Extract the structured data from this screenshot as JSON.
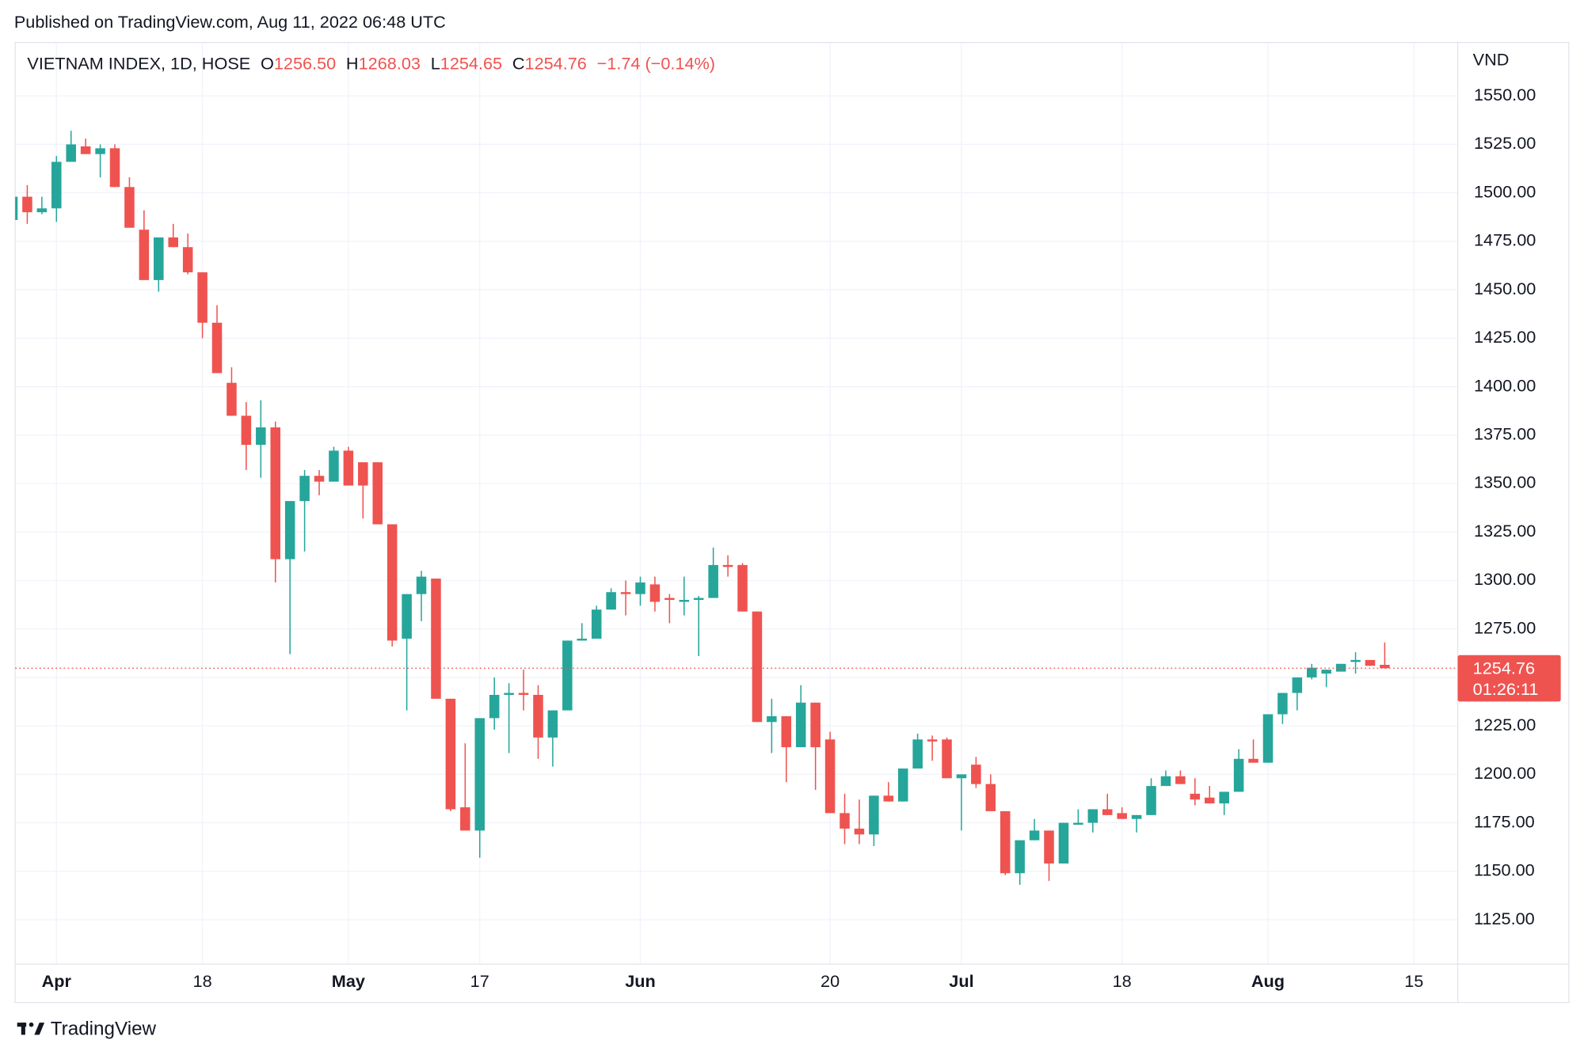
{
  "published": "Published on TradingView.com, Aug 11, 2022 06:48 UTC",
  "brand": "TradingView",
  "chart_data": {
    "type": "candlestick",
    "title": "VIETNAM INDEX, 1D, HOSE",
    "ohlc_header": {
      "o_key": "O",
      "o": "1256.50",
      "h_key": "H",
      "h": "1268.03",
      "l_key": "L",
      "l": "1254.65",
      "c_key": "C",
      "c": "1254.76",
      "change": "−1.74 (−0.14%)"
    },
    "y_axis_label": "VND",
    "countdown": "01:26:11",
    "up_color": "#26a69a",
    "down_color": "#ef5350",
    "grid": true,
    "x": [
      0,
      1,
      2,
      3,
      4,
      5,
      6,
      7,
      8,
      9,
      10,
      11,
      12,
      13,
      14,
      15,
      16,
      17,
      18,
      19,
      20,
      21,
      22,
      23,
      24,
      25,
      26,
      27,
      28,
      29,
      30,
      31,
      32,
      33,
      34,
      35,
      36,
      37,
      38,
      39,
      40,
      41,
      42,
      43,
      44,
      45,
      46,
      47,
      48,
      49,
      50,
      51,
      52,
      53,
      54,
      55,
      56,
      57,
      58,
      59,
      60,
      61,
      62,
      63,
      64,
      65,
      66,
      67,
      68,
      69,
      70,
      71,
      72,
      73,
      74,
      75,
      76,
      77,
      78,
      79,
      80,
      81,
      82,
      83,
      84,
      85,
      86,
      87,
      88,
      89,
      90,
      91,
      92,
      93,
      94
    ],
    "open": [
      1486,
      1498,
      1490,
      1492,
      1516,
      1524,
      1520,
      1523,
      1503,
      1481,
      1455,
      1477,
      1472,
      1459,
      1433,
      1402,
      1385,
      1370,
      1379,
      1311,
      1341,
      1354,
      1351,
      1367,
      1361,
      1361,
      1329,
      1270,
      1293,
      1301,
      1239,
      1183,
      1171,
      1229,
      1241,
      1242,
      1241,
      1219,
      1233,
      1269,
      1270,
      1285,
      1294,
      1293,
      1298,
      1291,
      1289,
      1290,
      1291,
      1308,
      1308,
      1284,
      1227,
      1230,
      1214,
      1237,
      1218,
      1180,
      1172,
      1169,
      1189,
      1186,
      1203,
      1218,
      1218,
      1198,
      1205,
      1195,
      1181,
      1149,
      1166,
      1171,
      1154,
      1174,
      1175,
      1182,
      1180,
      1177,
      1179,
      1194,
      1199,
      1190,
      1188,
      1185,
      1191,
      1208,
      1206,
      1231,
      1242,
      1250,
      1252,
      1253,
      1258,
      1259,
      1256.5
    ],
    "high": [
      1504,
      1504,
      1498,
      1519,
      1532,
      1528,
      1525,
      1525,
      1508,
      1491,
      1477,
      1484,
      1479,
      1459,
      1442,
      1410,
      1392,
      1393,
      1382,
      1341,
      1357,
      1357,
      1369,
      1369,
      1361,
      1361,
      1329,
      1293,
      1305,
      1301,
      1239,
      1216,
      1229,
      1250,
      1247,
      1254,
      1246,
      1233,
      1269,
      1278,
      1287,
      1296,
      1300,
      1302,
      1302,
      1293,
      1302,
      1292,
      1317,
      1313,
      1309,
      1284,
      1239,
      1230,
      1246,
      1237,
      1222,
      1190,
      1187,
      1189,
      1196,
      1203,
      1221,
      1220,
      1219,
      1200,
      1209,
      1200,
      1181,
      1166,
      1177,
      1171,
      1175,
      1182,
      1182,
      1190,
      1183,
      1179,
      1198,
      1202,
      1202,
      1198,
      1194,
      1191,
      1213,
      1218,
      1231,
      1242,
      1250,
      1257,
      1254,
      1257,
      1263,
      1259,
      1268.03
    ],
    "low": [
      1483,
      1484,
      1489,
      1485,
      1516,
      1520,
      1508,
      1503,
      1482,
      1455,
      1449,
      1472,
      1458,
      1425,
      1407,
      1385,
      1357,
      1353,
      1299,
      1262,
      1315,
      1344,
      1351,
      1349,
      1332,
      1329,
      1266,
      1233,
      1279,
      1239,
      1181,
      1171,
      1157,
      1223,
      1211,
      1233,
      1208,
      1204,
      1233,
      1269,
      1270,
      1285,
      1282,
      1287,
      1284,
      1278,
      1282,
      1261,
      1291,
      1302,
      1284,
      1227,
      1211,
      1196,
      1214,
      1192,
      1180,
      1164,
      1164,
      1163,
      1186,
      1186,
      1203,
      1207,
      1198,
      1171,
      1193,
      1181,
      1148,
      1143,
      1166,
      1145,
      1154,
      1174,
      1170,
      1179,
      1177,
      1170,
      1179,
      1194,
      1195,
      1184,
      1185,
      1179,
      1191,
      1206,
      1206,
      1226,
      1233,
      1249,
      1245,
      1253,
      1252,
      1256,
      1254.65
    ],
    "close": [
      1498,
      1490,
      1492,
      1516,
      1525,
      1520,
      1523,
      1503,
      1482,
      1455,
      1477,
      1472,
      1459,
      1433,
      1407,
      1385,
      1370,
      1379,
      1311,
      1341,
      1354,
      1351,
      1367,
      1349,
      1349,
      1329,
      1269,
      1293,
      1302,
      1239,
      1182,
      1171,
      1229,
      1241,
      1242,
      1241,
      1219,
      1233,
      1269,
      1270,
      1285,
      1294,
      1293,
      1299,
      1289,
      1290,
      1290,
      1291,
      1308,
      1307,
      1284,
      1227,
      1230,
      1214,
      1237,
      1214,
      1180,
      1172,
      1169,
      1189,
      1186,
      1203,
      1218,
      1217,
      1198,
      1200,
      1195,
      1181,
      1149,
      1166,
      1171,
      1154,
      1175,
      1175,
      1182,
      1179,
      1177,
      1179,
      1194,
      1199,
      1195,
      1187,
      1185,
      1191,
      1208,
      1206,
      1231,
      1242,
      1250,
      1255,
      1254,
      1257,
      1259,
      1256,
      1254.76
    ],
    "xlim": [
      0.17,
      99.0
    ],
    "xticks": [
      {
        "value": 3,
        "label": "Apr"
      },
      {
        "value": 13,
        "label": "18"
      },
      {
        "value": 23,
        "label": "May"
      },
      {
        "value": 32,
        "label": "17"
      },
      {
        "value": 43,
        "label": "Jun"
      },
      {
        "value": 56,
        "label": "20"
      },
      {
        "value": 65,
        "label": "Jul"
      },
      {
        "value": 76,
        "label": "18"
      },
      {
        "value": 86,
        "label": "Aug"
      },
      {
        "value": 96,
        "label": "15"
      }
    ],
    "ylim": [
      1102.1,
      1577.6
    ],
    "yticks": [
      {
        "value": 1125,
        "label": "1125.00"
      },
      {
        "value": 1150,
        "label": "1150.00"
      },
      {
        "value": 1175,
        "label": "1175.00"
      },
      {
        "value": 1200,
        "label": "1200.00"
      },
      {
        "value": 1225,
        "label": "1225.00"
      },
      {
        "value": 1250,
        "label": "1250.00"
      },
      {
        "value": 1275,
        "label": "1275.00"
      },
      {
        "value": 1300,
        "label": "1300.00"
      },
      {
        "value": 1325,
        "label": "1325.00"
      },
      {
        "value": 1350,
        "label": "1350.00"
      },
      {
        "value": 1375,
        "label": "1375.00"
      },
      {
        "value": 1400,
        "label": "1400.00"
      },
      {
        "value": 1425,
        "label": "1425.00"
      },
      {
        "value": 1450,
        "label": "1450.00"
      },
      {
        "value": 1475,
        "label": "1475.00"
      },
      {
        "value": 1500,
        "label": "1500.00"
      },
      {
        "value": 1525,
        "label": "1525.00"
      },
      {
        "value": 1550,
        "label": "1550.00"
      }
    ]
  }
}
